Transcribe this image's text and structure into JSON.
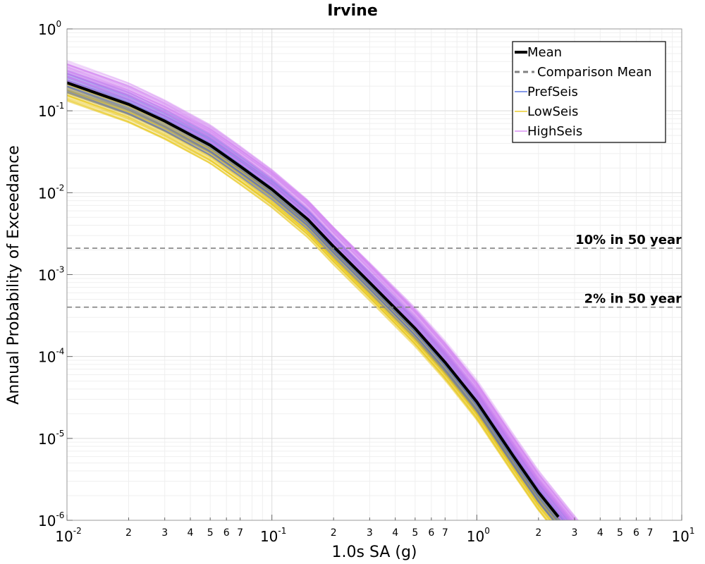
{
  "chart_data": {
    "type": "line",
    "title": "Irvine",
    "xlabel": "1.0s SA (g)",
    "ylabel": "Annual Probability of Exceedance",
    "x_scale": "log",
    "y_scale": "log",
    "xlim": [
      0.01,
      10
    ],
    "ylim": [
      1e-06,
      1
    ],
    "grid": true,
    "legend_position": "top-right",
    "x_major_ticks": [
      {
        "base": "10",
        "exp": "-2"
      },
      {
        "base": "10",
        "exp": "-1"
      },
      {
        "base": "10",
        "exp": "0"
      },
      {
        "base": "10",
        "exp": "1"
      }
    ],
    "y_major_ticks": [
      {
        "base": "10",
        "exp": "0"
      },
      {
        "base": "10",
        "exp": "-1"
      },
      {
        "base": "10",
        "exp": "-2"
      },
      {
        "base": "10",
        "exp": "-3"
      },
      {
        "base": "10",
        "exp": "-4"
      },
      {
        "base": "10",
        "exp": "-5"
      },
      {
        "base": "10",
        "exp": "-6"
      }
    ],
    "x_minor_tick_labels": [
      "2",
      "3",
      "4",
      "5",
      "6",
      "7"
    ],
    "series": [
      {
        "name": "Mean",
        "color": "#000000",
        "style": "solid",
        "x": [
          0.01,
          0.02,
          0.03,
          0.05,
          0.07,
          0.1,
          0.15,
          0.2,
          0.3,
          0.5,
          0.7,
          1.0,
          1.5,
          2.0,
          2.5
        ],
        "y": [
          0.22,
          0.12,
          0.075,
          0.038,
          0.021,
          0.011,
          0.0047,
          0.0022,
          0.0008,
          0.00022,
          8.5e-05,
          2.8e-05,
          6.2e-06,
          2.2e-06,
          1.1e-06
        ]
      },
      {
        "name": "Comparison Mean",
        "color": "#808080",
        "style": "dashed",
        "x": [],
        "y": []
      },
      {
        "name": "PrefSeis",
        "color": "#3b5bdb",
        "style": "solid",
        "band_factor": [
          0.75,
          1.35
        ]
      },
      {
        "name": "LowSeis",
        "color": "#e6c200",
        "style": "solid",
        "band_factor": [
          0.6,
          1.0
        ]
      },
      {
        "name": "HighSeis",
        "color": "#d27cf0",
        "style": "solid",
        "band_factor": [
          1.0,
          1.75
        ]
      }
    ],
    "reference_lines": [
      {
        "label": "10% in 50 year",
        "y": 0.0021
      },
      {
        "label": "2% in 50 year",
        "y": 0.0004
      }
    ]
  }
}
